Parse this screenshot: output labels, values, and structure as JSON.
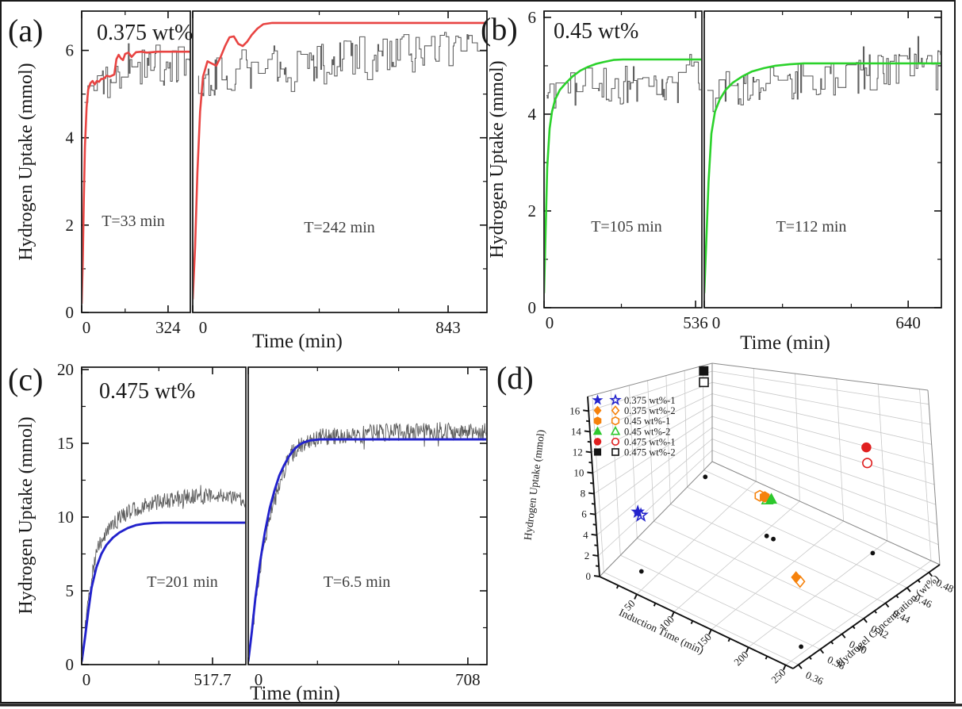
{
  "figure": {
    "background": "#ffffff",
    "border_color": "#1a1a1a",
    "description_labels": [
      "(a)",
      "(b)",
      "(c)",
      "(d)"
    ]
  },
  "chart_data": [
    {
      "type": "line",
      "panel_label": "(a)",
      "inset_label": "0.375 wt%",
      "concentration_wt_pct": 0.375,
      "ylabel": "Hydrogen Uptake (mmol)",
      "xlabel": "Time (min)",
      "ylim": [
        0,
        6.9
      ],
      "ytick_labels": [
        "0",
        "2",
        "4",
        "6"
      ],
      "fit_color": "#e84442",
      "data_color": "#4d4d4d",
      "noise_style": "step",
      "subplots": [
        {
          "run": 1,
          "annotation": "T=33 min",
          "induction_time_min": 33,
          "xlim": [
            0,
            410
          ],
          "xtick_labels": [
            "0",
            "324"
          ],
          "plateau_mmol": 5.97,
          "fit": [
            [
              0,
              0.2
            ],
            [
              0.01,
              1.2
            ],
            [
              0.02,
              2.6
            ],
            [
              0.03,
              3.8
            ],
            [
              0.045,
              4.7
            ],
            [
              0.06,
              5.1
            ],
            [
              0.08,
              5.25
            ],
            [
              0.1,
              5.3
            ],
            [
              0.12,
              5.22
            ],
            [
              0.14,
              5.3
            ],
            [
              0.16,
              5.28
            ],
            [
              0.18,
              5.35
            ],
            [
              0.2,
              5.35
            ],
            [
              0.23,
              5.42
            ],
            [
              0.26,
              5.4
            ],
            [
              0.3,
              5.45
            ],
            [
              0.32,
              5.8
            ],
            [
              0.34,
              5.9
            ],
            [
              0.36,
              5.82
            ],
            [
              0.38,
              5.78
            ],
            [
              0.4,
              5.92
            ],
            [
              0.43,
              5.95
            ],
            [
              0.46,
              5.85
            ],
            [
              0.5,
              5.96
            ],
            [
              0.55,
              5.97
            ],
            [
              0.6,
              5.95
            ],
            [
              0.7,
              5.97
            ],
            [
              1,
              5.97
            ]
          ],
          "noise": [
            [
              0.025,
              4.8,
              0.45
            ],
            [
              0.06,
              5.15,
              0.4
            ],
            [
              0.12,
              5.35,
              0.42
            ],
            [
              0.25,
              5.3,
              0.45
            ],
            [
              0.4,
              5.55,
              0.45
            ],
            [
              0.6,
              5.6,
              0.5
            ],
            [
              0.8,
              5.65,
              0.5
            ],
            [
              1,
              5.75,
              0.5
            ]
          ]
        },
        {
          "run": 2,
          "annotation": "T=242 min",
          "induction_time_min": 242,
          "xlim": [
            0,
            970
          ],
          "xtick_labels": [
            "0",
            "843"
          ],
          "plateau_mmol": 6.63,
          "fit": [
            [
              0,
              0.3
            ],
            [
              0.008,
              1.5
            ],
            [
              0.016,
              3.2
            ],
            [
              0.025,
              4.6
            ],
            [
              0.035,
              5.4
            ],
            [
              0.05,
              5.75
            ],
            [
              0.065,
              5.7
            ],
            [
              0.08,
              5.65
            ],
            [
              0.095,
              5.85
            ],
            [
              0.11,
              6.1
            ],
            [
              0.125,
              6.3
            ],
            [
              0.14,
              6.32
            ],
            [
              0.155,
              6.15
            ],
            [
              0.17,
              6.1
            ],
            [
              0.185,
              6.2
            ],
            [
              0.2,
              6.35
            ],
            [
              0.22,
              6.5
            ],
            [
              0.24,
              6.6
            ],
            [
              0.27,
              6.63
            ],
            [
              1,
              6.63
            ]
          ],
          "noise": [
            [
              0.02,
              5.3,
              0.5
            ],
            [
              0.1,
              5.55,
              0.5
            ],
            [
              0.3,
              5.7,
              0.5
            ],
            [
              0.5,
              5.75,
              0.55
            ],
            [
              0.7,
              5.9,
              0.5
            ],
            [
              0.9,
              6.1,
              0.45
            ],
            [
              1,
              6.4,
              0.3
            ]
          ]
        }
      ]
    },
    {
      "type": "line",
      "panel_label": "(b)",
      "inset_label": "0.45 wt%",
      "concentration_wt_pct": 0.45,
      "ylabel": "Hydrogen Uptake (mmol)",
      "xlabel": "Time (min)",
      "ylim": [
        0,
        6.13
      ],
      "ytick_labels": [
        "0",
        "2",
        "4",
        "6"
      ],
      "fit_color": "#2bd22b",
      "data_color": "#4d4d4d",
      "noise_style": "step",
      "subplots": [
        {
          "run": 1,
          "annotation": "T=105 min",
          "induction_time_min": 105,
          "xlim": [
            0,
            565
          ],
          "xtick_labels": [
            "0",
            "536"
          ],
          "plateau_mmol": 5.13,
          "fit": [
            [
              0,
              0.3
            ],
            [
              0.01,
              1.6
            ],
            [
              0.02,
              2.9
            ],
            [
              0.035,
              3.7
            ],
            [
              0.05,
              4.05
            ],
            [
              0.07,
              4.3
            ],
            [
              0.1,
              4.5
            ],
            [
              0.14,
              4.65
            ],
            [
              0.18,
              4.78
            ],
            [
              0.23,
              4.9
            ],
            [
              0.28,
              4.98
            ],
            [
              0.33,
              5.04
            ],
            [
              0.38,
              5.08
            ],
            [
              0.44,
              5.12
            ],
            [
              0.5,
              5.13
            ],
            [
              1,
              5.13
            ]
          ],
          "noise": [
            [
              0.015,
              4.35,
              0.35
            ],
            [
              0.1,
              4.5,
              0.4
            ],
            [
              0.3,
              4.55,
              0.42
            ],
            [
              0.6,
              4.6,
              0.42
            ],
            [
              0.85,
              4.65,
              0.45
            ],
            [
              1,
              4.7,
              0.42
            ]
          ]
        },
        {
          "run": 2,
          "annotation": "T=112 min",
          "induction_time_min": 112,
          "xlim": [
            0,
            745
          ],
          "xtick_labels": [
            "0",
            "640"
          ],
          "plateau_mmol": 5.05,
          "fit": [
            [
              0,
              0.3
            ],
            [
              0.008,
              1.3
            ],
            [
              0.018,
              2.6
            ],
            [
              0.03,
              3.6
            ],
            [
              0.045,
              4.05
            ],
            [
              0.065,
              4.3
            ],
            [
              0.09,
              4.5
            ],
            [
              0.12,
              4.65
            ],
            [
              0.16,
              4.78
            ],
            [
              0.2,
              4.88
            ],
            [
              0.25,
              4.95
            ],
            [
              0.3,
              5.0
            ],
            [
              0.36,
              5.03
            ],
            [
              0.42,
              5.05
            ],
            [
              1,
              5.05
            ]
          ],
          "noise": [
            [
              0.015,
              4.3,
              0.3
            ],
            [
              0.1,
              4.5,
              0.35
            ],
            [
              0.3,
              4.6,
              0.38
            ],
            [
              0.55,
              4.75,
              0.4
            ],
            [
              0.75,
              4.9,
              0.4
            ],
            [
              0.9,
              5.05,
              0.35
            ],
            [
              1,
              5.1,
              0.35
            ]
          ]
        }
      ]
    },
    {
      "type": "line",
      "panel_label": "(c)",
      "inset_label": "0.475 wt%",
      "concentration_wt_pct": 0.475,
      "ylabel": "Hydrogen Uptake (mmol)",
      "xlabel": "Time (min)",
      "ylim": [
        0,
        20.16
      ],
      "ytick_labels": [
        "0",
        "5",
        "10",
        "15",
        "20"
      ],
      "fit_color": "#2222cc",
      "data_color": "#4d4d4d",
      "noise_style": "dense",
      "subplots": [
        {
          "run": 1,
          "annotation": "T=201 min",
          "induction_time_min": 201,
          "xlim": [
            0,
            650
          ],
          "xtick_labels": [
            "0",
            "517.7"
          ],
          "plateau_mmol": 9.62,
          "fit": [
            [
              0,
              0.2
            ],
            [
              0.02,
              1.8
            ],
            [
              0.04,
              3.6
            ],
            [
              0.06,
              5.2
            ],
            [
              0.09,
              6.6
            ],
            [
              0.12,
              7.5
            ],
            [
              0.15,
              8.1
            ],
            [
              0.19,
              8.6
            ],
            [
              0.23,
              8.95
            ],
            [
              0.28,
              9.25
            ],
            [
              0.33,
              9.45
            ],
            [
              0.38,
              9.55
            ],
            [
              0.44,
              9.6
            ],
            [
              0.5,
              9.62
            ],
            [
              1,
              9.62
            ]
          ],
          "noise": [
            [
              0.02,
              2.5,
              0.4
            ],
            [
              0.04,
              4.5,
              0.45
            ],
            [
              0.07,
              6.5,
              0.5
            ],
            [
              0.1,
              7.9,
              0.5
            ],
            [
              0.14,
              8.8,
              0.5
            ],
            [
              0.2,
              9.7,
              0.5
            ],
            [
              0.28,
              10.3,
              0.55
            ],
            [
              0.38,
              10.8,
              0.55
            ],
            [
              0.5,
              11.1,
              0.55
            ],
            [
              0.65,
              11.35,
              0.55
            ],
            [
              0.8,
              11.45,
              0.5
            ],
            [
              0.92,
              11.4,
              0.5
            ],
            [
              1,
              11.15,
              0.45
            ]
          ]
        },
        {
          "run": 2,
          "annotation": "T=6.5 min",
          "induction_time_min": 6.5,
          "xlim": [
            0,
            770
          ],
          "xtick_labels": [
            "0",
            "708"
          ],
          "plateau_mmol": 15.27,
          "fit": [
            [
              0,
              0.2
            ],
            [
              0.015,
              2.2
            ],
            [
              0.03,
              4.5
            ],
            [
              0.05,
              7.0
            ],
            [
              0.07,
              9.0
            ],
            [
              0.09,
              10.6
            ],
            [
              0.11,
              11.8
            ],
            [
              0.13,
              12.8
            ],
            [
              0.15,
              13.5
            ],
            [
              0.17,
              14.1
            ],
            [
              0.19,
              14.55
            ],
            [
              0.21,
              14.85
            ],
            [
              0.23,
              15.05
            ],
            [
              0.26,
              15.2
            ],
            [
              0.3,
              15.27
            ],
            [
              1,
              15.27
            ]
          ],
          "noise": [
            [
              0.015,
              2.5,
              0.5
            ],
            [
              0.04,
              5.5,
              0.55
            ],
            [
              0.07,
              8.5,
              0.6
            ],
            [
              0.1,
              10.8,
              0.6
            ],
            [
              0.13,
              12.4,
              0.6
            ],
            [
              0.16,
              13.6,
              0.6
            ],
            [
              0.19,
              14.4,
              0.6
            ],
            [
              0.23,
              15.0,
              0.6
            ],
            [
              0.3,
              15.4,
              0.6
            ],
            [
              0.45,
              15.6,
              0.6
            ],
            [
              0.6,
              15.75,
              0.62
            ],
            [
              0.8,
              15.85,
              0.6
            ],
            [
              1,
              15.75,
              0.6
            ]
          ]
        }
      ]
    },
    {
      "type": "scatter3d",
      "panel_label": "(d)",
      "xlabel": "Induction Time (min)",
      "ylabel": "Hydrogel Concentration (wt%)",
      "zlabel": "Hydrogen Uptake (mmol)",
      "xtick_labels": [
        "50",
        "100",
        "150",
        "200",
        "250"
      ],
      "ytick_labels": [
        "0.36",
        "0.38",
        "0.40",
        "0.42",
        "0.44",
        "0.46",
        "0.48"
      ],
      "ztick_labels": [
        "0",
        "2",
        "4",
        "6",
        "8",
        "10",
        "12",
        "14",
        "16"
      ],
      "xlim": [
        0,
        260
      ],
      "ylim": [
        0.355,
        0.49
      ],
      "zlim": [
        0,
        17.4
      ],
      "legend_position": "upper-left-inside",
      "legend": [
        {
          "label": "0.375 wt%-1",
          "marker": "star",
          "color": "#2424cc"
        },
        {
          "label": "0.375 wt%-2",
          "marker": "diamond",
          "color": "#f6820c"
        },
        {
          "label": "0.45 wt%-1",
          "marker": "hexagon",
          "color": "#f6820c"
        },
        {
          "label": "0.45 wt%-2",
          "marker": "triangle",
          "color": "#2dc82d"
        },
        {
          "label": "0.475 wt%-1",
          "marker": "circle",
          "color": "#e01f1f"
        },
        {
          "label": "0.475 wt%-2",
          "marker": "square",
          "color": "#141414"
        }
      ],
      "points": [
        {
          "series": 0,
          "fill": "open",
          "induction_time": 37,
          "concentration": 0.375,
          "uptake": 5.9
        },
        {
          "series": 0,
          "fill": "filled",
          "induction_time": 33,
          "concentration": 0.375,
          "uptake": 6.1
        },
        {
          "series": 1,
          "fill": "open",
          "induction_time": 247,
          "concentration": 0.375,
          "uptake": 6.45
        },
        {
          "series": 1,
          "fill": "filled",
          "induction_time": 242,
          "concentration": 0.375,
          "uptake": 6.7
        },
        {
          "series": 2,
          "fill": "open",
          "induction_time": 99,
          "concentration": 0.45,
          "uptake": 4.6
        },
        {
          "series": 2,
          "fill": "filled",
          "induction_time": 105,
          "concentration": 0.45,
          "uptake": 4.7
        },
        {
          "series": 3,
          "fill": "open",
          "induction_time": 108,
          "concentration": 0.45,
          "uptake": 4.5
        },
        {
          "series": 3,
          "fill": "filled",
          "induction_time": 113,
          "concentration": 0.45,
          "uptake": 4.75
        },
        {
          "series": 4,
          "fill": "open",
          "induction_time": 201,
          "concentration": 0.475,
          "uptake": 9.8
        },
        {
          "series": 4,
          "fill": "filled",
          "induction_time": 201,
          "concentration": 0.475,
          "uptake": 11.5
        },
        {
          "series": 5,
          "fill": "open",
          "induction_time": 6.5,
          "concentration": 0.475,
          "uptake": 15.1
        },
        {
          "series": 5,
          "fill": "filled",
          "induction_time": 6.5,
          "concentration": 0.475,
          "uptake": 16.9
        }
      ]
    }
  ]
}
